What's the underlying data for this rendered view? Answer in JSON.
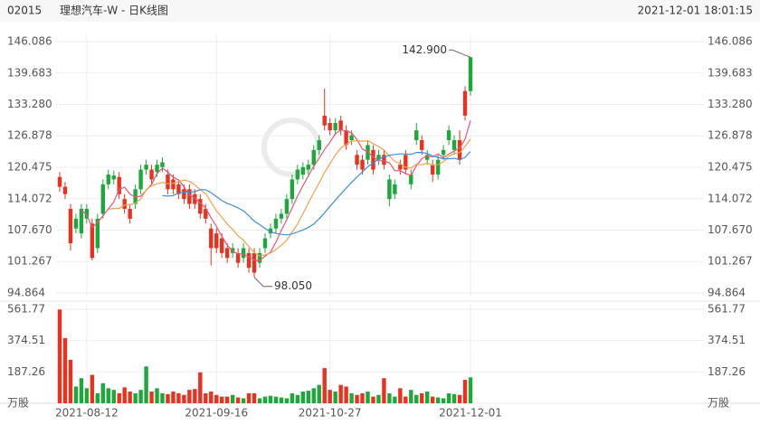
{
  "chart_data": {
    "type": "candlestick",
    "code": "02015",
    "title": "理想汽车-W - 日K线图",
    "timestamp": "2021-12-01 18:01:15",
    "categories": [
      null,
      null,
      null,
      null,
      null,
      "2021-08-12",
      null,
      null,
      null,
      null,
      null,
      null,
      null,
      null,
      null,
      null,
      null,
      null,
      null,
      null,
      null,
      null,
      null,
      null,
      null,
      null,
      null,
      null,
      null,
      "2021-09-16",
      null,
      null,
      null,
      null,
      null,
      null,
      null,
      null,
      null,
      null,
      null,
      null,
      null,
      null,
      null,
      null,
      null,
      null,
      null,
      null,
      "2021-10-27",
      null,
      null,
      null,
      null,
      null,
      null,
      null,
      null,
      null,
      null,
      null,
      null,
      null,
      null,
      null,
      null,
      null,
      null,
      null,
      null,
      null,
      null,
      null,
      null,
      null,
      "2021-12-01"
    ],
    "open": [
      118.5,
      116.5,
      112,
      108,
      107,
      110,
      109,
      104,
      111,
      117,
      118,
      118.5,
      114,
      112,
      113,
      116,
      120,
      120,
      119.5,
      120.5,
      119,
      118,
      117,
      116,
      116,
      115,
      114,
      112,
      108,
      107,
      106,
      104,
      103,
      103,
      102,
      103,
      103,
      101,
      104,
      107,
      108,
      110,
      111,
      114,
      118,
      119,
      120,
      121,
      124,
      131,
      129.5,
      128,
      130,
      128,
      126,
      123,
      122,
      122,
      124,
      122,
      123,
      114,
      115,
      121,
      123,
      117,
      126,
      126,
      122,
      121,
      119,
      123,
      126,
      124,
      126,
      136,
      136
    ],
    "high": [
      119.5,
      117.5,
      113,
      111,
      113,
      113,
      110,
      111,
      118,
      120,
      119.8,
      119.5,
      115,
      113,
      117,
      121,
      122,
      121,
      122,
      122.5,
      120,
      119,
      118,
      117,
      117,
      116,
      115,
      113,
      109,
      108,
      107,
      105,
      105,
      104,
      105,
      104,
      104,
      104,
      107,
      109,
      111,
      112,
      115,
      119,
      121,
      121.5,
      122,
      125,
      127,
      136.5,
      130.5,
      130.5,
      131,
      129,
      128,
      124,
      123,
      126,
      125,
      124,
      124,
      119,
      118,
      122,
      124,
      120,
      129.5,
      127,
      124,
      122,
      123,
      125,
      129,
      127,
      128,
      137,
      142.9
    ],
    "low": [
      115.5,
      114,
      103.5,
      107,
      106,
      109,
      101.5,
      103,
      110,
      116,
      117,
      114,
      111,
      109,
      112,
      115,
      119,
      117,
      118.5,
      119.5,
      115,
      115,
      114,
      113,
      112,
      112,
      110,
      109,
      100.5,
      103,
      102,
      101,
      102,
      100,
      101,
      99,
      98.05,
      100,
      103,
      106,
      107,
      109,
      110,
      113,
      117,
      118,
      119,
      120,
      123,
      128,
      127,
      127,
      127,
      124,
      125,
      120,
      119,
      121,
      119,
      121,
      120,
      112.5,
      114,
      119,
      119,
      116,
      125,
      123,
      121,
      117.5,
      118,
      122,
      125,
      123,
      121,
      130,
      135
    ],
    "close": [
      116.5,
      115,
      105,
      110,
      112,
      112,
      102,
      110,
      117,
      119,
      118.8,
      115,
      112,
      110,
      116,
      120,
      121,
      118,
      121,
      121.5,
      116,
      116,
      115,
      114,
      113,
      113,
      111,
      110,
      104,
      104,
      103,
      102,
      104,
      101,
      104,
      100,
      99,
      103,
      106,
      108,
      110,
      111,
      114,
      118,
      120,
      120.5,
      121,
      124,
      126,
      129,
      128,
      129.5,
      128,
      125,
      127,
      121,
      120,
      125,
      120,
      123,
      121,
      118,
      117,
      120,
      120,
      119,
      128,
      124,
      123,
      119,
      122,
      124,
      128,
      126,
      122,
      131,
      142.9
    ],
    "up_color": "#1ea83c",
    "down_color": "#e8311f",
    "ylim": [
      94.864,
      146.086
    ],
    "yticks": [
      146.086,
      139.683,
      {
        "value": 133.28,
        "label": "133.280"
      },
      126.878,
      120.475,
      114.072,
      {
        "value": 107.67,
        "label": "107.670"
      },
      101.267,
      94.864
    ],
    "high_label": "142.900",
    "low_label": "98.050",
    "grid": true,
    "ma": [
      {
        "color": "#e8557a",
        "values": [
          null,
          null,
          null,
          null,
          111.7,
          110.8,
          108.2,
          109.2,
          110.6,
          112,
          113.4,
          116,
          116.4,
          115,
          114.4,
          114.6,
          115.8,
          117,
          119.2,
          120.3,
          119.5,
          118.5,
          117.9,
          116.5,
          114.8,
          114.2,
          113.2,
          112.2,
          110.2,
          108.4,
          106.4,
          104.6,
          103.4,
          102.8,
          102.8,
          102.2,
          101.6,
          101.4,
          102.4,
          103.2,
          105.2,
          107.6,
          109.8,
          112.2,
          114.6,
          116.7,
          118.7,
          120.7,
          122.3,
          124.1,
          125.6,
          127.3,
          128.1,
          127.9,
          127.5,
          126.1,
          124.2,
          123.6,
          122.6,
          121.8,
          121.8,
          121.4,
          119.8,
          119.8,
          119.2,
          118.8,
          120.8,
          122.2,
          122.8,
          122.6,
          123.2,
          122.4,
          123.2,
          123.8,
          124.4,
          126.2,
          130
        ]
      },
      {
        "color": "#f5a04a",
        "values": [
          null,
          null,
          null,
          null,
          null,
          null,
          null,
          null,
          null,
          111.9,
          112.1,
          112.1,
          112.8,
          112.8,
          113.2,
          114,
          115.9,
          116.7,
          117.1,
          117.4,
          117.1,
          117.2,
          117.5,
          117.9,
          117.6,
          116.9,
          115.9,
          115.1,
          113.4,
          111.6,
          110.3,
          108.9,
          107.8,
          106.5,
          105.6,
          104.3,
          103.1,
          102.4,
          102.6,
          103,
          103.7,
          104.6,
          105.6,
          107.3,
          108.9,
          111,
          113.2,
          115.3,
          117.3,
          119.4,
          121.2,
          123,
          124.4,
          125.1,
          125.8,
          125.9,
          125.8,
          125.9,
          125.3,
          124.7,
          124,
          122.8,
          121.7,
          121.2,
          120.5,
          120.3,
          121.1,
          121,
          121.3,
          120.9,
          121,
          121.6,
          122.7,
          123.3,
          123.5,
          124.7,
          126.2
        ]
      },
      {
        "color": "#3d8fd6",
        "values": [
          null,
          null,
          null,
          null,
          null,
          null,
          null,
          null,
          null,
          null,
          null,
          null,
          null,
          null,
          null,
          null,
          null,
          null,
          null,
          114.7,
          114.6,
          114.7,
          115.2,
          115.4,
          115.4,
          115.5,
          115.9,
          115.9,
          115.3,
          114.5,
          113.7,
          113.1,
          112.7,
          112.2,
          111.6,
          110.6,
          109.5,
          108.8,
          108,
          107.3,
          107,
          106.8,
          106.7,
          106.9,
          107.3,
          107.7,
          108.2,
          108.9,
          110,
          111.2,
          112.5,
          113.8,
          115,
          116.2,
          117.4,
          118.5,
          119.5,
          120.6,
          121.3,
          122.1,
          122.6,
          122.9,
          123.1,
          123.2,
          123.2,
          123.1,
          123.5,
          123.5,
          123.3,
          122.8,
          122.5,
          122.2,
          122.2,
          122.3,
          122,
          122.5,
          123.7
        ]
      }
    ],
    "volume": {
      "values": [
        560,
        390,
        260,
        100,
        150,
        90,
        170,
        60,
        120,
        90,
        80,
        60,
        95,
        70,
        60,
        80,
        220,
        70,
        90,
        60,
        55,
        70,
        60,
        50,
        80,
        85,
        185,
        60,
        70,
        50,
        40,
        40,
        50,
        35,
        30,
        60,
        60,
        30,
        40,
        45,
        40,
        35,
        30,
        60,
        50,
        70,
        75,
        90,
        110,
        210,
        80,
        70,
        110,
        100,
        60,
        50,
        60,
        70,
        40,
        50,
        150,
        60,
        40,
        90,
        40,
        80,
        50,
        60,
        70,
        40,
        35,
        30,
        60,
        55,
        50,
        140,
        155
      ],
      "ylim": [
        0,
        561.77
      ],
      "yticks": [
        561.77,
        374.51,
        187.26,
        {
          "value": 0,
          "label": "万股"
        }
      ]
    }
  }
}
